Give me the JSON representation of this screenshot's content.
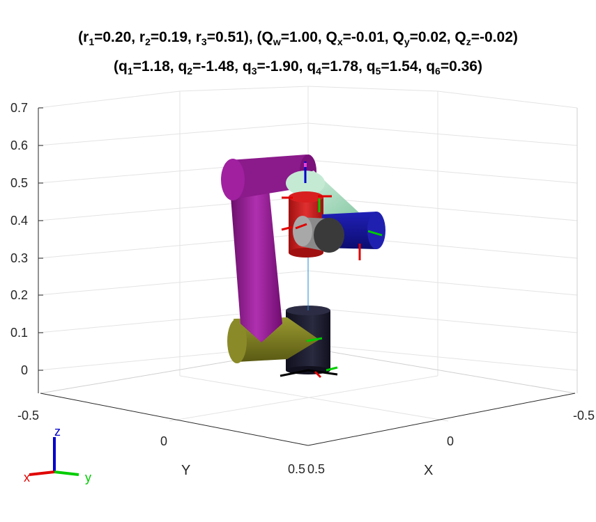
{
  "title": {
    "line1": [
      {
        "t": "("
      },
      {
        "t": "r"
      },
      {
        "s": "1"
      },
      {
        "t": "=0.20, "
      },
      {
        "t": "r"
      },
      {
        "s": "2"
      },
      {
        "t": "=0.19, "
      },
      {
        "t": "r"
      },
      {
        "s": "3"
      },
      {
        "t": "=0.51), (Q"
      },
      {
        "s": "w"
      },
      {
        "t": "=1.00, Q"
      },
      {
        "s": "x"
      },
      {
        "t": "=-0.01, Q"
      },
      {
        "s": "y"
      },
      {
        "t": "=0.02, Q"
      },
      {
        "s": "z"
      },
      {
        "t": "=-0.02)"
      }
    ],
    "line2": [
      {
        "t": "(q"
      },
      {
        "s": "1"
      },
      {
        "t": "=1.18, q"
      },
      {
        "s": "2"
      },
      {
        "t": "=-1.48, q"
      },
      {
        "s": "3"
      },
      {
        "t": "=-1.90, q"
      },
      {
        "s": "4"
      },
      {
        "t": "=1.78, q"
      },
      {
        "s": "5"
      },
      {
        "t": "=1.54, q"
      },
      {
        "s": "6"
      },
      {
        "t": "=0.36)"
      }
    ]
  },
  "axes": {
    "z_ticks": [
      "0.7",
      "0.6",
      "0.5",
      "0.4",
      "0.3",
      "0.2",
      "0.1",
      "0"
    ],
    "y_ticks": [
      "-0.5",
      "0",
      "0.5"
    ],
    "x_ticks": [
      "0.5",
      "0",
      "-0.5"
    ],
    "y_label": "Y",
    "x_label": "X"
  },
  "triad": {
    "x": "x",
    "y": "y",
    "z": "z"
  },
  "colors": {
    "base": "#1a1a2e",
    "link1": "#8b1a8b",
    "link_yellow": "#7a7a22",
    "shoulder_green": "#a8dcc0",
    "elbow_red": "#c81818",
    "wrist_blue": "#1a1a9a",
    "wrist_gray": "#606060",
    "axis_x": "#e00000",
    "axis_y": "#00cc00",
    "axis_z": "#0000cc"
  }
}
